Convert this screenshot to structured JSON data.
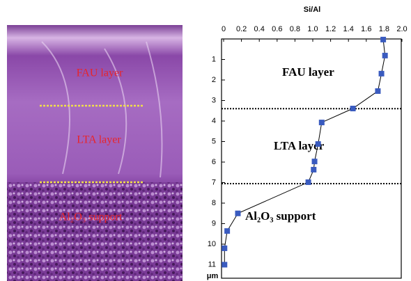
{
  "micrograph": {
    "labels": [
      "FAU layer",
      "LTA layer",
      "Al₂O₃ support"
    ]
  },
  "chart_data": {
    "type": "line",
    "x_label": "Si/Al",
    "y_label": "μm",
    "series": [
      {
        "color": "#3a5bbf",
        "x": [
          0.03,
          0.81,
          1.69,
          2.54,
          3.39,
          4.07,
          5.12,
          5.97,
          6.37,
          6.98,
          8.5,
          9.36,
          10.2,
          11.0
        ],
        "values": [
          1.79,
          1.81,
          1.77,
          1.73,
          1.45,
          1.1,
          1.06,
          1.02,
          1.01,
          0.95,
          0.16,
          0.04,
          0.01,
          0.01
        ]
      }
    ],
    "xlim": [
      0,
      11.66
    ],
    "xticks": [
      1,
      2,
      3,
      4,
      5,
      6,
      7,
      8,
      9,
      10,
      11
    ],
    "ylim": [
      0,
      2
    ],
    "yticks": [
      0,
      0.2,
      0.4,
      0.6,
      0.8,
      {
        "value": 1,
        "label": "1.0"
      },
      1.2,
      1.4,
      1.6,
      1.8,
      {
        "value": 2,
        "label": "2.0"
      }
    ],
    "reference_lines": [
      3.4,
      7.05
    ],
    "annotations": [
      "FAU layer",
      "LTA layer",
      "Al₂O₃ support"
    ]
  }
}
